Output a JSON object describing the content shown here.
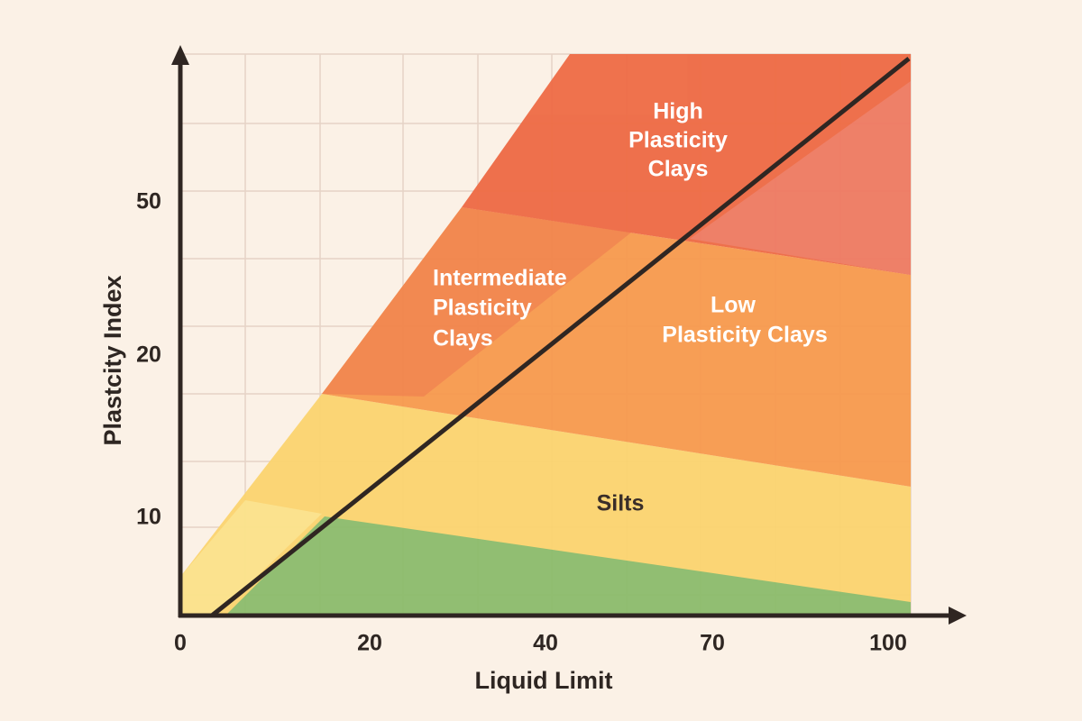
{
  "axes": {
    "x_label": "Liquid Limit",
    "y_label": "Plastcity Index",
    "x_ticks": [
      "0",
      "20",
      "40",
      "70",
      "100"
    ],
    "y_ticks": [
      "50",
      "20",
      "10"
    ]
  },
  "regions": [
    {
      "lines": [
        "High",
        "Plasticity",
        "Clays"
      ]
    },
    {
      "lines": [
        "Intermediate",
        "Plasticity",
        "Clays"
      ]
    },
    {
      "lines": [
        "Low",
        "Plasticity Clays"
      ]
    },
    {
      "lines": [
        "Silts"
      ]
    }
  ]
}
